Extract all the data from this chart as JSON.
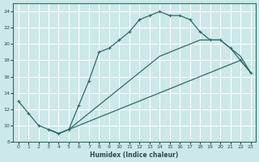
{
  "xlabel": "Humidex (Indice chaleur)",
  "background_color": "#cce8e8",
  "grid_color": "#ffffff",
  "line_color": "#2e6b6b",
  "xlim": [
    -0.5,
    23.5
  ],
  "ylim": [
    8,
    25
  ],
  "yticks": [
    8,
    10,
    12,
    14,
    16,
    18,
    20,
    22,
    24
  ],
  "xticks": [
    0,
    1,
    2,
    3,
    4,
    5,
    6,
    7,
    8,
    9,
    10,
    11,
    12,
    13,
    14,
    15,
    16,
    17,
    18,
    19,
    20,
    21,
    22,
    23
  ],
  "line1_x": [
    0,
    1,
    2,
    3,
    4,
    5,
    6,
    7,
    8,
    9,
    10,
    11,
    12,
    13,
    14,
    15,
    16,
    17,
    18,
    19,
    20,
    21,
    22,
    23
  ],
  "line1_y": [
    13.0,
    11.5,
    10.0,
    9.5,
    9.0,
    9.5,
    12.5,
    15.5,
    19.0,
    19.5,
    20.5,
    21.5,
    23.0,
    23.5,
    24.0,
    23.5,
    23.5,
    23.0,
    21.5,
    20.5,
    20.5,
    19.5,
    18.0,
    16.5
  ],
  "line2_x": [
    3,
    4,
    5,
    6,
    7,
    8,
    9,
    10,
    11,
    12,
    13,
    14,
    15,
    16,
    17,
    18,
    19,
    20,
    21,
    22,
    23
  ],
  "line2_y": [
    9.5,
    9.0,
    9.5,
    10.0,
    10.5,
    11.0,
    11.5,
    12.0,
    12.5,
    13.0,
    13.5,
    14.0,
    14.5,
    15.0,
    15.5,
    16.0,
    16.5,
    17.0,
    17.5,
    18.0,
    16.5
  ],
  "line3_x": [
    3,
    4,
    5,
    6,
    7,
    8,
    9,
    10,
    11,
    12,
    13,
    14,
    15,
    16,
    17,
    18,
    19,
    20,
    21,
    22,
    23
  ],
  "line3_y": [
    9.5,
    9.0,
    9.5,
    10.5,
    11.5,
    12.5,
    13.5,
    14.5,
    15.5,
    16.5,
    17.5,
    18.5,
    19.0,
    19.5,
    20.0,
    20.5,
    20.5,
    20.5,
    19.5,
    18.5,
    16.5
  ]
}
